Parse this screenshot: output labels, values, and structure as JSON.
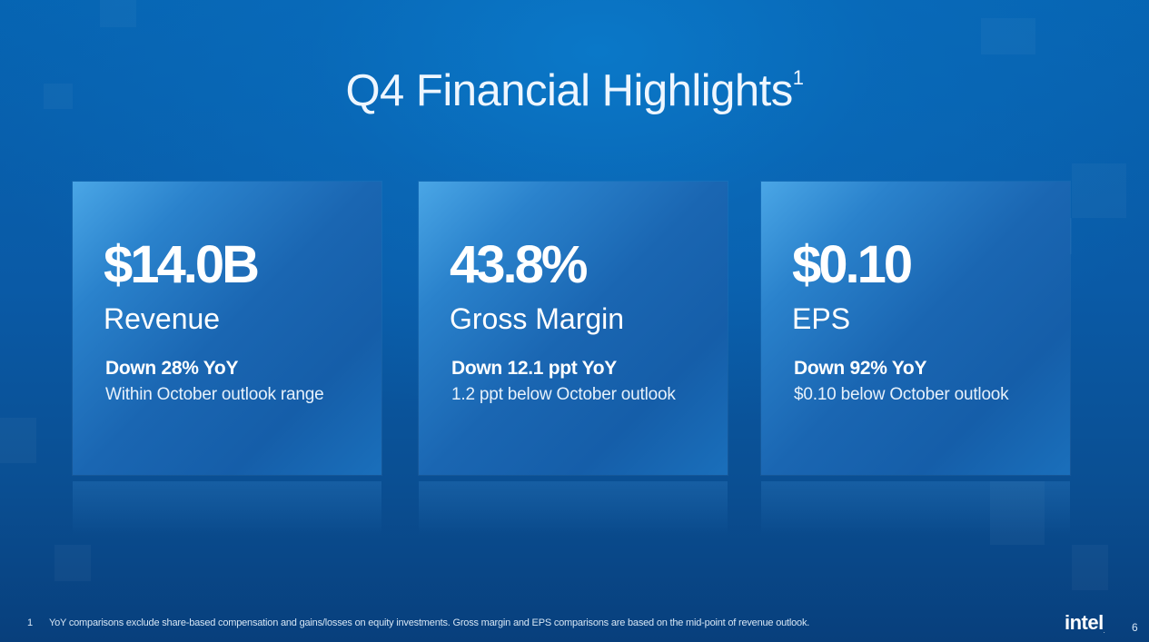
{
  "slide": {
    "title": "Q4 Financial Highlights",
    "title_footnote_mark": "1",
    "page_number": "6"
  },
  "cards": [
    {
      "value": "$14.0B",
      "label": "Revenue",
      "change": "Down 28% YoY",
      "detail": "Within October outlook range"
    },
    {
      "value": "43.8%",
      "label": "Gross Margin",
      "change": "Down 12.1 ppt YoY",
      "detail": "1.2 ppt below October outlook"
    },
    {
      "value": "$0.10",
      "label": "EPS",
      "change": "Down 92% YoY",
      "detail": "$0.10 below October outlook"
    }
  ],
  "footnote": {
    "number": "1",
    "text": "YoY comparisons exclude share-based compensation and gains/losses on equity investments. Gross margin and EPS comparisons are based on the mid-point of revenue outlook."
  },
  "logo": {
    "text": "intel",
    "mark": "."
  },
  "colors": {
    "background": "#0a5aa6",
    "card_light": "#4aa6e6",
    "card_dark": "#155ea9",
    "text": "#ffffff"
  }
}
